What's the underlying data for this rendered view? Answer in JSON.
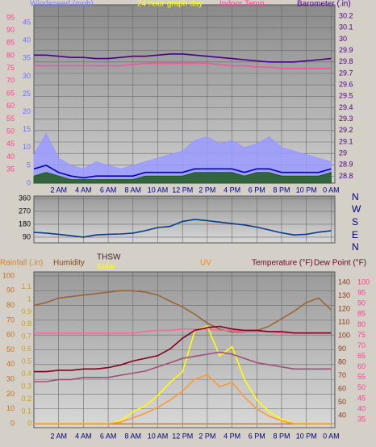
{
  "chart_data": [
    {
      "type": "line",
      "title": "24 hour graph day",
      "x": [
        0,
        1,
        2,
        3,
        4,
        5,
        6,
        7,
        8,
        9,
        10,
        11,
        12,
        13,
        14,
        15,
        16,
        17,
        18,
        19,
        20,
        21,
        22,
        23,
        24
      ],
      "xlim": [
        0,
        24.3
      ],
      "xticks": [
        {
          "value": 2,
          "label": "2 AM"
        },
        {
          "value": 4,
          "label": "4 AM"
        },
        {
          "value": 6,
          "label": "6 AM"
        },
        {
          "value": 8,
          "label": "8 AM"
        },
        {
          "value": 10,
          "label": "10 AM"
        },
        {
          "value": 12,
          "label": "12 PM"
        },
        {
          "value": 14,
          "label": "2 PM"
        },
        {
          "value": 16,
          "label": "4 PM"
        },
        {
          "value": 18,
          "label": "6 PM"
        },
        {
          "value": 20,
          "label": "8 PM"
        },
        {
          "value": 22,
          "label": "10 PM"
        },
        {
          "value": 24,
          "label": "0 AM"
        }
      ],
      "grid": true,
      "grid_axis": 2,
      "axes": [
        {
          "lim": [
            0,
            50
          ],
          "ticks": [
            0,
            5,
            10,
            15,
            20,
            25,
            30,
            35,
            40,
            45
          ],
          "color": "#7070f0"
        },
        {
          "lim": [
            29.6,
            100.1
          ],
          "ticks": [
            35,
            40,
            45,
            50,
            55,
            60,
            65,
            70,
            75,
            80,
            85,
            90,
            95
          ],
          "color": "#ff3f8f"
        },
        {
          "lim": [
            28.74,
            30.3
          ],
          "ticks": [
            28.8,
            28.9,
            29,
            29.1,
            29.2,
            29.3,
            29.4,
            29.5,
            29.6,
            29.7,
            29.8,
            29.9,
            30,
            30.1,
            30.2
          ],
          "color": "#4b0082"
        }
      ],
      "series": [
        {
          "name": "Windspeed (mph)",
          "color": "#9a9aff",
          "axis": 0,
          "area": true,
          "values": [
            8,
            14,
            7,
            5,
            4,
            6,
            5,
            4,
            5,
            6,
            7,
            8,
            9,
            12,
            13,
            11,
            12,
            10,
            11,
            13,
            10,
            9,
            8,
            7,
            6
          ]
        },
        {
          "color": "#1e5a1e",
          "axis": 0,
          "area": true,
          "values": [
            2,
            3,
            2,
            1,
            1,
            1,
            1,
            1,
            1,
            2,
            2,
            2,
            2,
            3,
            3,
            3,
            3,
            2,
            3,
            3,
            2,
            2,
            2,
            2,
            3
          ]
        },
        {
          "color": "#0000c0",
          "axis": 0,
          "values": [
            4,
            5,
            3,
            2,
            1.5,
            2,
            2,
            2,
            2,
            3,
            3,
            3,
            3,
            4,
            4,
            4,
            4,
            3,
            4,
            4,
            3,
            3,
            3,
            3,
            4
          ]
        },
        {
          "name": "Indoor Temp.",
          "color": "#ff4f9f",
          "axis": 1,
          "values": [
            76,
            76,
            76,
            76,
            76,
            76,
            76,
            76,
            76.5,
            77,
            77,
            77,
            77,
            77,
            77,
            76.5,
            76,
            76,
            75.5,
            75.5,
            75,
            75,
            75,
            75,
            75
          ]
        },
        {
          "name": "Barometer (.in)",
          "color": "#4b0082",
          "axis": 2,
          "values": [
            29.86,
            29.86,
            29.85,
            29.84,
            29.84,
            29.83,
            29.83,
            29.84,
            29.85,
            29.85,
            29.86,
            29.87,
            29.87,
            29.86,
            29.85,
            29.84,
            29.83,
            29.82,
            29.81,
            29.8,
            29.8,
            29.8,
            29.81,
            29.82,
            29.83
          ]
        }
      ]
    },
    {
      "type": "line",
      "x": [
        0,
        1,
        2,
        3,
        4,
        5,
        6,
        7,
        8,
        9,
        10,
        11,
        12,
        13,
        14,
        15,
        16,
        17,
        18,
        19,
        20,
        21,
        22,
        23,
        24
      ],
      "xlim": [
        0,
        24.3
      ],
      "grid": true,
      "grid_axis": 0,
      "axes": [
        {
          "lim": [
            50,
            377
          ],
          "ticks": [
            90,
            180,
            270,
            360
          ],
          "color": "#000000"
        }
      ],
      "compass": [
        "N",
        "W",
        "S",
        "E",
        "N"
      ],
      "series": [
        {
          "color": "#0a3a8a",
          "axis": 0,
          "values": [
            124,
            118,
            110,
            100,
            90,
            105,
            110,
            112,
            118,
            135,
            157,
            165,
            200,
            214,
            205,
            195,
            185,
            175,
            160,
            140,
            120,
            105,
            110,
            125,
            135
          ]
        }
      ]
    },
    {
      "type": "line",
      "x": [
        0,
        1,
        2,
        3,
        4,
        5,
        6,
        7,
        8,
        9,
        10,
        11,
        12,
        13,
        14,
        15,
        16,
        17,
        18,
        19,
        20,
        21,
        22,
        23,
        24
      ],
      "xlim": [
        0,
        24.3
      ],
      "xticks": [
        {
          "value": 2,
          "label": "2 AM"
        },
        {
          "value": 4,
          "label": "4 AM"
        },
        {
          "value": 6,
          "label": "6 AM"
        },
        {
          "value": 8,
          "label": "8 AM"
        },
        {
          "value": 10,
          "label": "10 AM"
        },
        {
          "value": 12,
          "label": "12 PM"
        },
        {
          "value": 14,
          "label": "2 PM"
        },
        {
          "value": 16,
          "label": "4 PM"
        },
        {
          "value": 18,
          "label": "6 PM"
        },
        {
          "value": 20,
          "label": "8 PM"
        },
        {
          "value": 22,
          "label": "10 PM"
        },
        {
          "value": 24,
          "label": "0 AM"
        }
      ],
      "grid": true,
      "grid_axis": 0,
      "axes": [
        {
          "lim": [
            -2.7,
            102.7
          ],
          "ticks": [
            0,
            10,
            20,
            30,
            40,
            50,
            60,
            70,
            80,
            90,
            100
          ],
          "color": "#c07020"
        },
        {
          "lim": [
            -0.03,
            1.22
          ],
          "ticks": [
            0,
            0.1,
            0.2,
            0.3,
            0.4,
            0.5,
            0.6,
            0.7,
            0.8,
            0.9,
            1,
            1.1
          ],
          "color": "#c8a020"
        },
        {
          "lim": [
            30.9,
            147.9
          ],
          "ticks": [
            40,
            50,
            60,
            70,
            80,
            90,
            100,
            110,
            120,
            130,
            140
          ],
          "color": "#8b3a1a"
        },
        {
          "lim": [
            31.2,
            105
          ],
          "ticks": [
            35,
            40,
            45,
            50,
            55,
            60,
            65,
            70,
            75,
            80,
            85,
            90,
            95,
            100
          ],
          "color": "#ff3f8f"
        }
      ],
      "series": [
        {
          "name": "Rainfall (.in)",
          "color": "#e08020",
          "axis": 1,
          "values": [
            0,
            0,
            0,
            0,
            0,
            0,
            0,
            0,
            0,
            0,
            0,
            0,
            0,
            0,
            0,
            0,
            0,
            0,
            0,
            0,
            0,
            0,
            0,
            0,
            0
          ]
        },
        {
          "name": "Humidity",
          "color": "#996633",
          "axis": 0,
          "values": [
            80,
            82,
            85,
            86,
            87,
            88,
            89,
            90,
            90,
            89,
            87,
            83,
            79,
            74,
            68,
            64,
            62,
            62,
            63,
            66,
            71,
            76,
            82,
            85,
            77
          ]
        },
        {
          "name": "THSW",
          "color": "#ff6699",
          "axis": 2,
          "values": [
            102,
            102,
            102,
            102,
            102,
            102,
            102,
            102,
            102,
            103,
            104,
            104,
            105,
            105,
            105,
            104,
            104,
            103,
            103,
            103,
            102,
            102,
            102,
            102,
            102
          ]
        },
        {
          "name": "Solar",
          "color": "#ffff00",
          "axis": 0,
          "values": [
            0,
            0,
            0,
            0,
            0,
            0,
            0,
            2,
            8,
            12,
            19,
            28,
            35,
            63,
            66,
            46,
            52,
            30,
            16,
            8,
            3,
            0,
            0,
            0,
            0
          ]
        },
        {
          "name": "UV",
          "color": "#ff9933",
          "axis": 0,
          "values": [
            0,
            0,
            0,
            0,
            0,
            0,
            0,
            1,
            4,
            7,
            11,
            16,
            22,
            30,
            33,
            25,
            28,
            18,
            10,
            5,
            2,
            0,
            0,
            0,
            0
          ]
        },
        {
          "name": "Temperature (°F)",
          "color": "#800020",
          "axis": 2,
          "values": [
            73,
            73,
            74,
            74,
            75,
            75,
            76,
            78,
            81,
            83,
            85,
            90,
            98,
            104,
            106,
            107,
            105,
            104,
            104,
            103,
            103,
            102,
            102,
            102,
            102
          ]
        },
        {
          "name": "Dew Point (°F)",
          "color": "#a05070",
          "axis": 3,
          "values": [
            53,
            53,
            54,
            54,
            55,
            55,
            55,
            56,
            57,
            58,
            60,
            62,
            64,
            65,
            66,
            67,
            66,
            64,
            62,
            61,
            60,
            59,
            59,
            59,
            59
          ]
        }
      ]
    }
  ]
}
